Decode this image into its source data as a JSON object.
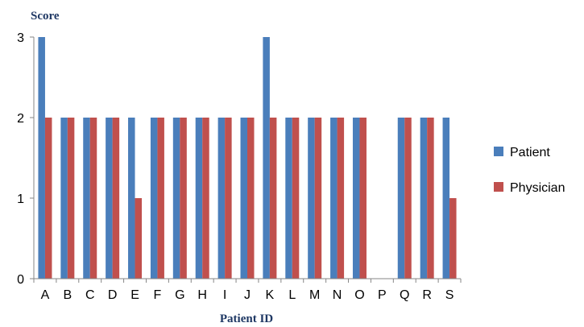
{
  "chart_data": {
    "type": "bar",
    "ylabel": "Score",
    "xlabel": "Patient ID",
    "ylim": [
      0,
      3
    ],
    "yticks": [
      0,
      1,
      2,
      3
    ],
    "grid": false,
    "legend_position": "right",
    "categories": [
      "A",
      "B",
      "C",
      "D",
      "E",
      "F",
      "G",
      "H",
      "I",
      "J",
      "K",
      "L",
      "M",
      "N",
      "O",
      "P",
      "Q",
      "R",
      "S"
    ],
    "series": [
      {
        "name": "Patient",
        "color": "#4a7ebb",
        "values": [
          3,
          2,
          2,
          2,
          2,
          2,
          2,
          2,
          2,
          2,
          3,
          2,
          2,
          2,
          2,
          0,
          2,
          2,
          2
        ]
      },
      {
        "name": "Physician",
        "color": "#c0504d",
        "values": [
          2,
          2,
          2,
          2,
          1,
          2,
          2,
          2,
          2,
          2,
          2,
          2,
          2,
          2,
          2,
          0,
          2,
          2,
          1
        ]
      }
    ]
  }
}
